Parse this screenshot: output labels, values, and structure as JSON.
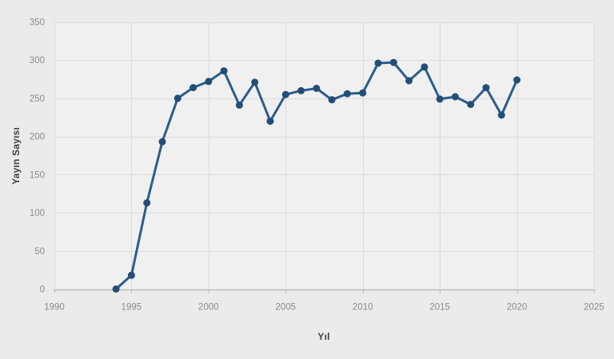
{
  "chart_data": {
    "type": "line",
    "title": "",
    "xlabel": "Yıl",
    "ylabel": "Yayın Sayısı",
    "x": [
      1994,
      1995,
      1996,
      1997,
      1998,
      1999,
      2000,
      2001,
      2002,
      2003,
      2004,
      2005,
      2006,
      2007,
      2008,
      2009,
      2010,
      2011,
      2012,
      2013,
      2014,
      2015,
      2016,
      2017,
      2018,
      2019,
      2020
    ],
    "series": [
      {
        "name": "Yayın Sayısı",
        "values": [
          0,
          18,
          113,
          193,
          250,
          264,
          272,
          286,
          241,
          271,
          220,
          255,
          260,
          263,
          248,
          256,
          257,
          296,
          297,
          273,
          291,
          249,
          252,
          242,
          264,
          228,
          274
        ]
      }
    ],
    "xlim": [
      1990,
      2025
    ],
    "ylim": [
      0,
      350
    ],
    "xticks": [
      1990,
      1995,
      2000,
      2005,
      2010,
      2015,
      2020,
      2025
    ],
    "yticks": [
      0,
      50,
      100,
      150,
      200,
      250,
      300,
      350
    ],
    "grid": true,
    "legend": false,
    "colors": {
      "line": "#2a5d8c",
      "marker": "#224e77",
      "page_bg": "#ebebeb",
      "plot_bg": "#f0f0f0",
      "grid": "#dcdcdc",
      "axis_line": "#b5b5b5",
      "tick_label": "#8a8a8a",
      "axis_title": "#3f3f3f"
    }
  }
}
